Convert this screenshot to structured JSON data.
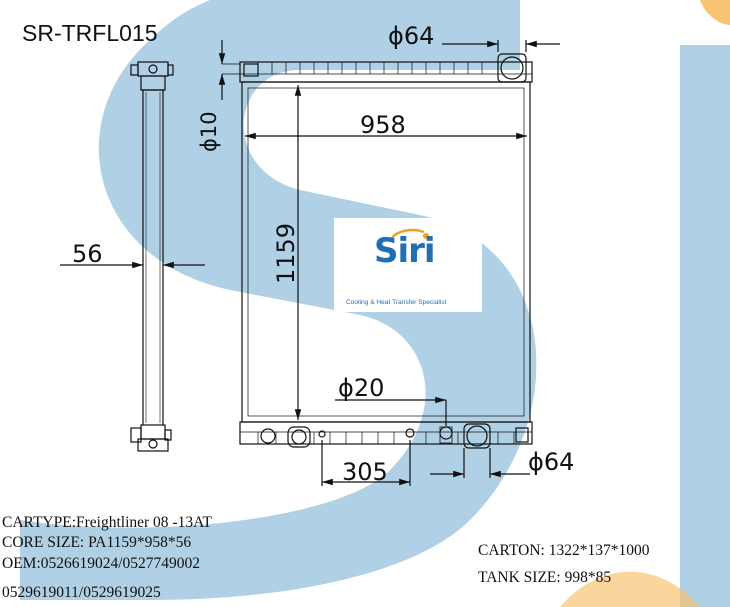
{
  "model_code": "SR-TRFL015",
  "brand": {
    "name": "Siri",
    "tagline": "Cooling & Heat Transfer Specialist",
    "watermark_color": "#7fb3d5",
    "brand_color": "#1f6fb5",
    "accent_color": "#f2a11f"
  },
  "dimensions": {
    "inlet_top": "ϕ64",
    "cap_neck": "ϕ10",
    "core_width": "958",
    "core_height": "1159",
    "depth": "56",
    "drain": "ϕ20",
    "outlet_offset": "305",
    "outlet_bottom": "ϕ64"
  },
  "specs": {
    "cartype": "CARTYPE:Freightliner 08 -13AT",
    "core_size": "CORE SIZE: PA1159*958*56",
    "oem_1": "OEM:0526619024/0527749002",
    "oem_2": "0529619011/0529619025",
    "carton": "CARTON: 1322*137*1000",
    "tank_size": "TANK SIZE: 998*85"
  }
}
